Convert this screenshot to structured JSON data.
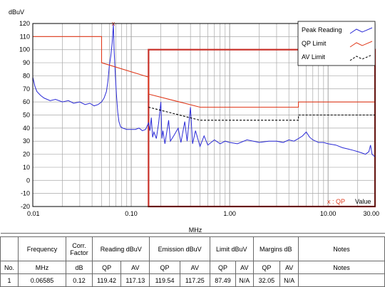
{
  "chart_data": {
    "type": "line",
    "ylabel": "dBuV",
    "xlabel": "MHz",
    "xscale": "log",
    "xlim": [
      0.01,
      30
    ],
    "ylim": [
      -20,
      120
    ],
    "yticks": [
      -20,
      -10,
      0,
      10,
      20,
      30,
      40,
      50,
      60,
      70,
      80,
      90,
      100,
      110,
      120
    ],
    "xticks": [
      {
        "v": 0.01,
        "label": "0.01"
      },
      {
        "v": 0.1,
        "label": "0.10"
      },
      {
        "v": 1,
        "label": "1.00"
      },
      {
        "v": 10,
        "label": "10.00"
      },
      {
        "v": 30,
        "label": "30.00"
      }
    ],
    "grid": true,
    "legend_position": "top-right",
    "legend": [
      {
        "name": "Peak Reading",
        "color": "#2a2ad6",
        "style": "solid"
      },
      {
        "name": "QP Limit",
        "color": "#e03a1c",
        "style": "solid"
      },
      {
        "name": "AV Limit",
        "color": "#000000",
        "style": "dashed"
      }
    ],
    "series": [
      {
        "name": "Peak Reading",
        "color": "#2a2ad6",
        "points": [
          [
            0.01,
            79
          ],
          [
            0.0105,
            72
          ],
          [
            0.011,
            68
          ],
          [
            0.012,
            65
          ],
          [
            0.013,
            63
          ],
          [
            0.015,
            61
          ],
          [
            0.017,
            62
          ],
          [
            0.02,
            60
          ],
          [
            0.023,
            61
          ],
          [
            0.026,
            59
          ],
          [
            0.03,
            60
          ],
          [
            0.034,
            58
          ],
          [
            0.038,
            59
          ],
          [
            0.042,
            57
          ],
          [
            0.046,
            58
          ],
          [
            0.05,
            60
          ],
          [
            0.053,
            63
          ],
          [
            0.056,
            68
          ],
          [
            0.058,
            76
          ],
          [
            0.06,
            88
          ],
          [
            0.062,
            95
          ],
          [
            0.064,
            105
          ],
          [
            0.0659,
            119.4
          ],
          [
            0.067,
            100
          ],
          [
            0.069,
            80
          ],
          [
            0.071,
            64
          ],
          [
            0.073,
            52
          ],
          [
            0.075,
            45
          ],
          [
            0.078,
            41
          ],
          [
            0.082,
            40
          ],
          [
            0.09,
            39
          ],
          [
            0.1,
            39
          ],
          [
            0.11,
            39
          ],
          [
            0.12,
            40
          ],
          [
            0.13,
            38
          ],
          [
            0.14,
            39
          ],
          [
            0.15,
            44
          ],
          [
            0.155,
            38
          ],
          [
            0.16,
            48
          ],
          [
            0.165,
            33
          ],
          [
            0.17,
            37
          ],
          [
            0.18,
            32
          ],
          [
            0.19,
            44
          ],
          [
            0.2,
            60
          ],
          [
            0.205,
            32
          ],
          [
            0.21,
            38
          ],
          [
            0.22,
            28
          ],
          [
            0.24,
            46
          ],
          [
            0.25,
            30
          ],
          [
            0.27,
            34
          ],
          [
            0.3,
            40
          ],
          [
            0.32,
            29
          ],
          [
            0.35,
            45
          ],
          [
            0.37,
            30
          ],
          [
            0.4,
            56
          ],
          [
            0.42,
            28
          ],
          [
            0.45,
            38
          ],
          [
            0.5,
            26
          ],
          [
            0.55,
            34
          ],
          [
            0.6,
            27
          ],
          [
            0.7,
            31
          ],
          [
            0.8,
            28
          ],
          [
            0.9,
            30
          ],
          [
            1.0,
            29
          ],
          [
            1.2,
            28
          ],
          [
            1.5,
            31
          ],
          [
            2,
            29
          ],
          [
            2.5,
            30
          ],
          [
            3,
            30
          ],
          [
            3.5,
            29
          ],
          [
            4,
            31
          ],
          [
            4.5,
            30
          ],
          [
            5,
            32
          ],
          [
            5.5,
            34
          ],
          [
            6,
            37
          ],
          [
            6.5,
            33
          ],
          [
            7,
            31
          ],
          [
            8,
            29
          ],
          [
            9,
            29
          ],
          [
            10,
            28
          ],
          [
            12,
            27
          ],
          [
            14,
            25
          ],
          [
            16,
            24
          ],
          [
            18,
            23
          ],
          [
            20,
            22
          ],
          [
            22,
            21
          ],
          [
            24,
            20
          ],
          [
            26,
            22
          ],
          [
            27,
            27
          ],
          [
            28,
            20
          ],
          [
            30,
            18
          ]
        ]
      },
      {
        "name": "QP Limit",
        "color": "#e03a1c",
        "points": [
          [
            0.01,
            110
          ],
          [
            0.05,
            110
          ],
          [
            0.05,
            90
          ],
          [
            0.15,
            79
          ],
          [
            0.15,
            66
          ],
          [
            0.5,
            56
          ],
          [
            5,
            56
          ],
          [
            5,
            60
          ],
          [
            30,
            60
          ]
        ]
      },
      {
        "name": "AV Limit",
        "color": "#000000",
        "points": [
          [
            0.15,
            56
          ],
          [
            0.5,
            46
          ],
          [
            5,
            46
          ],
          [
            5,
            50
          ],
          [
            30,
            50
          ]
        ]
      }
    ],
    "annotations": [
      {
        "type": "marker",
        "label": "x",
        "x": 0.0659,
        "y": 119.4,
        "color": "#e03a1c"
      },
      {
        "type": "legend-note",
        "text": "x : QP",
        "color": "#e03a1c"
      },
      {
        "type": "legend-note",
        "text": "Value",
        "color": "#000000"
      }
    ],
    "highlight_box": {
      "x": [
        0.15,
        30
      ],
      "y": [
        -20,
        100
      ],
      "color": "#c9322a"
    }
  },
  "table": {
    "header1": [
      "Frequency",
      "Corr. Factor",
      "Reading dBuV",
      "Emission dBuV",
      "Limit dBuV",
      "Margins dB",
      "Notes"
    ],
    "header2": [
      "No.",
      "MHz",
      "dB",
      "QP",
      "AV",
      "QP",
      "AV",
      "QP",
      "AV",
      "QP",
      "AV",
      "Notes"
    ],
    "rows": [
      [
        "1",
        "0.06585",
        "0.12",
        "119.42",
        "117.13",
        "119.54",
        "117.25",
        "87.49",
        "N/A",
        "32.05",
        "N/A",
        ""
      ]
    ]
  }
}
